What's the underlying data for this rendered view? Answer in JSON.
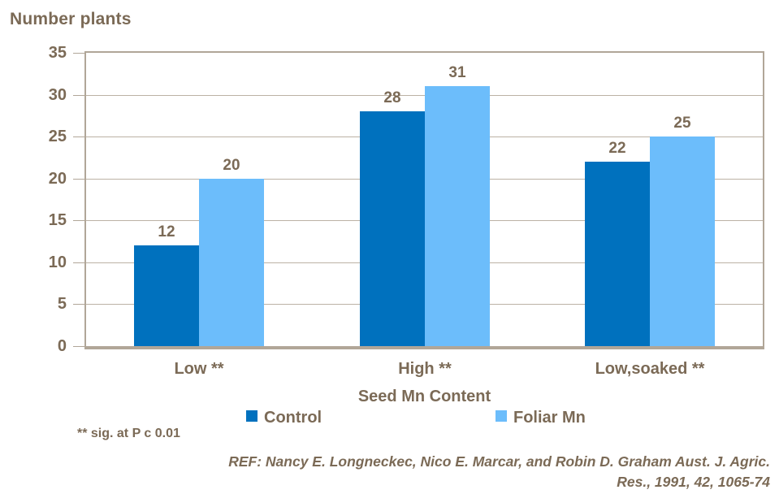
{
  "chart_data": {
    "type": "bar",
    "title": "Number plants",
    "categories": [
      "Low **",
      "High **",
      "Low,soaked **"
    ],
    "series": [
      {
        "name": "Control",
        "color": "#0071BE",
        "values": [
          12,
          28,
          22
        ]
      },
      {
        "name": "Foliar Mn",
        "color": "#6CBDFB",
        "values": [
          20,
          31,
          25
        ]
      }
    ],
    "xlabel": "Seed Mn Content",
    "ylabel": "Number plants",
    "ylim": [
      0,
      35
    ],
    "ytick_step": 5,
    "grid": true,
    "legend_position": "bottom",
    "bar_labels": true
  },
  "footnote": "** sig. at P c 0.01",
  "reference": {
    "line1": "REF: Nancy E. Longneckec, Nico E. Marcar, and Robin D. Graham Aust. J. Agric.",
    "line2": "Res., 1991, 42, 1065-74"
  },
  "colors": {
    "text": "#7B6A56",
    "axis": "#B1A698",
    "gridline": "#BCB2A5",
    "control": "#0071BE",
    "foliar_mn": "#6CBDFB"
  }
}
